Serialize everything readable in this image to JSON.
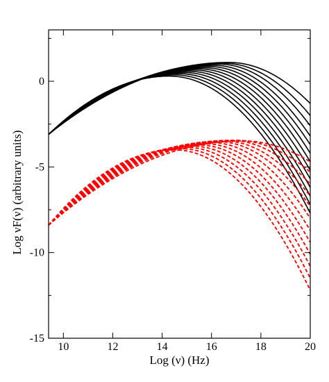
{
  "chart_data": {
    "type": "line",
    "xlabel": "Log (ν)  (Hz)",
    "ylabel": "Log νF(ν)     (arbitrary units)",
    "xlim": [
      9.4,
      20
    ],
    "ylim": [
      -15,
      3
    ],
    "x_ticks": [
      10,
      12,
      14,
      16,
      18,
      20
    ],
    "y_ticks": [
      0,
      -5,
      -10,
      -15
    ],
    "grid": false,
    "legend": "none",
    "colors": {
      "upper_family": "#000000",
      "lower_family": "#ff0000"
    },
    "families": [
      {
        "line_style": "solid",
        "color": "#000000",
        "anchor_x": 9.4,
        "anchor_y": -3.1,
        "peak_x": [
          14.3,
          14.5,
          14.7,
          14.9,
          15.1,
          15.3,
          15.5,
          15.7,
          15.9,
          16.1,
          16.3,
          16.5,
          16.7
        ],
        "peak_y": [
          0.3,
          0.37,
          0.44,
          0.51,
          0.58,
          0.65,
          0.72,
          0.79,
          0.86,
          0.93,
          1.0,
          1.05,
          1.1
        ],
        "end_y": [
          -7.7,
          -7.2,
          -6.7,
          -6.2,
          -5.7,
          -5.2,
          -4.7,
          -4.2,
          -3.7,
          -3.2,
          -2.6,
          -2.0,
          -1.3
        ]
      },
      {
        "line_style": "dashed",
        "color": "#ff0000",
        "anchor_x": 9.4,
        "anchor_y": -8.4,
        "peak_x": [
          14.5,
          14.75,
          15.0,
          15.25,
          15.5,
          15.75,
          16.0,
          16.25,
          16.5,
          16.75,
          17.0,
          17.25
        ],
        "peak_y": [
          -4.0,
          -3.93,
          -3.86,
          -3.79,
          -3.72,
          -3.65,
          -3.58,
          -3.52,
          -3.48,
          -3.45,
          -3.45,
          -3.48
        ],
        "end_y": [
          -12.2,
          -11.5,
          -10.8,
          -10.1,
          -9.4,
          -8.7,
          -8.0,
          -7.3,
          -6.7,
          -6.0,
          -5.3,
          -4.7
        ]
      }
    ]
  }
}
